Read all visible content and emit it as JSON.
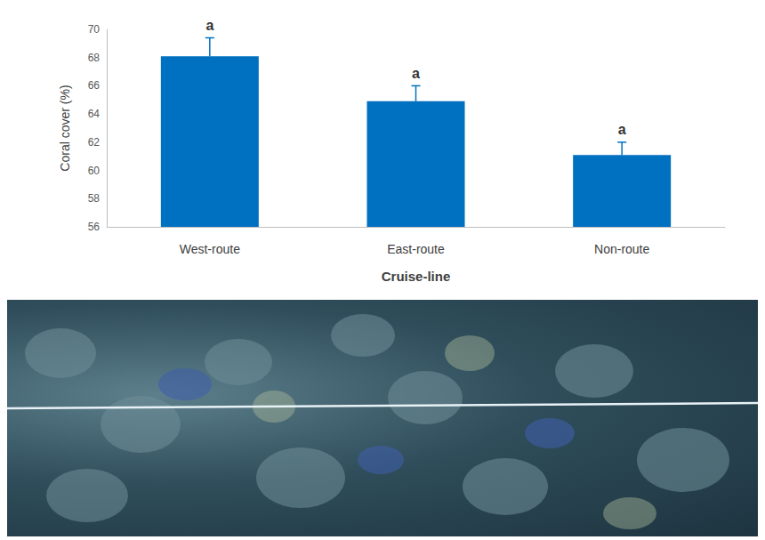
{
  "chart_data": {
    "type": "bar",
    "categories": [
      "West-route",
      "East-route",
      "Non-route"
    ],
    "values": [
      68.1,
      64.9,
      61.1
    ],
    "errors": [
      1.3,
      1.1,
      0.9
    ],
    "letters": [
      "a",
      "a",
      "a"
    ],
    "color": "#0070c0",
    "x_label": "Cruise-line",
    "y_label": "Coral cover (%)",
    "ylim": [
      56,
      70
    ],
    "yticks": [
      56,
      58,
      60,
      62,
      64,
      66,
      68,
      70
    ],
    "grid": false
  }
}
